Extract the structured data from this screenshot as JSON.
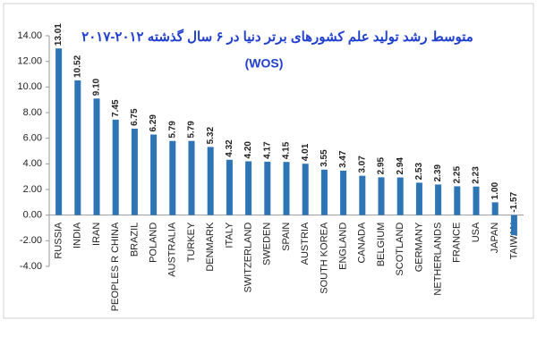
{
  "chart_data": {
    "type": "bar",
    "title": "متوسط رشد تولید علم کشورهای برتر دنیا در ۶ سال گذشته ۲۰۱۲-۲۰۱۷",
    "subtitle": "(WOS)",
    "categories": [
      "RUSSIA",
      "INDIA",
      "IRAN",
      "PEOPLES R CHINA",
      "BRAZIL",
      "POLAND",
      "AUSTRALIA",
      "TURKEY",
      "DENMARK",
      "ITALY",
      "SWITZERLAND",
      "SWEDEN",
      "SPAIN",
      "AUSTRIA",
      "SOUTH KOREA",
      "ENGLAND",
      "CANADA",
      "BELGIUM",
      "SCOTLAND",
      "GERMANY",
      "NETHERLANDS",
      "FRANCE",
      "USA",
      "JAPAN",
      "TAIWAN"
    ],
    "values": [
      13.01,
      10.52,
      9.1,
      7.45,
      6.75,
      6.29,
      5.79,
      5.79,
      5.32,
      4.32,
      4.2,
      4.17,
      4.15,
      4.01,
      3.55,
      3.47,
      3.07,
      2.95,
      2.94,
      2.53,
      2.39,
      2.25,
      2.23,
      1.0,
      -1.57
    ],
    "value_labels": [
      "13.01",
      "10.52",
      "9.10",
      "7.45",
      "6.75",
      "6.29",
      "5.79",
      "5.79",
      "5.32",
      "4.32",
      "4.20",
      "4.17",
      "4.15",
      "4.01",
      "3.55",
      "3.47",
      "3.07",
      "2.95",
      "2.94",
      "2.53",
      "2.39",
      "2.25",
      "2.23",
      "1.00",
      "-1.57"
    ],
    "color": "#2e75b6",
    "ylim": [
      -4,
      14
    ],
    "yticks": [
      {
        "value": -4,
        "label": "-4.00"
      },
      {
        "value": -2,
        "label": "-2.00"
      },
      {
        "value": 0,
        "label": "0.00"
      },
      {
        "value": 2,
        "label": "2.00"
      },
      {
        "value": 4,
        "label": "4.00"
      },
      {
        "value": 6,
        "label": "6.00"
      },
      {
        "value": 8,
        "label": "8.00"
      },
      {
        "value": 10,
        "label": "10.00"
      },
      {
        "value": 12,
        "label": "12.00"
      },
      {
        "value": 14,
        "label": "14.00"
      }
    ],
    "grid": false
  }
}
